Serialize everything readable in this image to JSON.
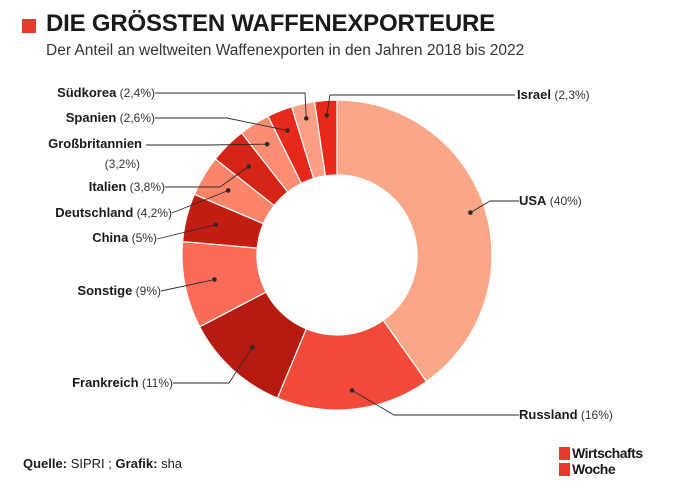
{
  "header": {
    "title": "DIE GRÖSSTEN WAFFENEXPORTEURE",
    "subtitle": "Der Anteil an weltweiten Waffenexporten in den Jahren 2018 bis 2022",
    "accent_color": "#e8392b"
  },
  "footer": {
    "source_label": "Quelle:",
    "source_value": "SIPRI",
    "separator": ";",
    "graphic_label": "Grafik:",
    "graphic_value": "sha"
  },
  "logo": {
    "line1": "Wirtschafts",
    "line2": "Woche",
    "color": "#e8392b"
  },
  "chart_data": {
    "type": "pie",
    "variant": "donut",
    "title": "DIE GRÖSSTEN WAFFENEXPORTEURE",
    "subtitle": "Der Anteil an weltweiten Waffenexporten in den Jahren 2018 bis 2022",
    "unit": "%",
    "start_angle_deg": 0,
    "direction": "clockwise",
    "slices": [
      {
        "name": "USA",
        "value": 40,
        "label": "(40%)",
        "color": "#fca688"
      },
      {
        "name": "Russland",
        "value": 16,
        "label": "(16%)",
        "color": "#f24a38"
      },
      {
        "name": "Frankreich",
        "value": 11,
        "label": "(11%)",
        "color": "#b51b10"
      },
      {
        "name": "Sonstige",
        "value": 9,
        "label": "(9%)",
        "color": "#fa6c57"
      },
      {
        "name": "China",
        "value": 5,
        "label": "(5%)",
        "color": "#c41e12"
      },
      {
        "name": "Deutschland",
        "value": 4.2,
        "label": "(4,2%)",
        "color": "#fc8569"
      },
      {
        "name": "Italien",
        "value": 3.8,
        "label": "(3,8%)",
        "color": "#d62416"
      },
      {
        "name": "Großbritannien",
        "value": 3.2,
        "label": "(3,2%)",
        "color": "#fc8d72"
      },
      {
        "name": "Spanien",
        "value": 2.6,
        "label": "(2,6%)",
        "color": "#e6291b"
      },
      {
        "name": "Südkorea",
        "value": 2.4,
        "label": "(2,4%)",
        "color": "#fd9f84"
      },
      {
        "name": "Israel",
        "value": 2.3,
        "label": "(2,3%)",
        "color": "#e8291a"
      }
    ]
  }
}
